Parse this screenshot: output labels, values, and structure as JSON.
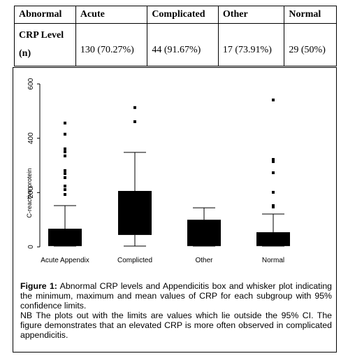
{
  "table": {
    "header": [
      "Abnormal",
      "Acute",
      "Complicated",
      "Other",
      "Normal"
    ],
    "rows": [
      [
        "CRP Level",
        "",
        "",
        "",
        ""
      ]
    ],
    "row_label": [
      "CRP Level",
      "(n)"
    ],
    "values": [
      "130 (70.27%)",
      "44 (91.67%)",
      "17 (73.91%)",
      "29 (50%)"
    ]
  },
  "chart_data": {
    "type": "box",
    "ylabel": "C-reactive protein",
    "categories": [
      "Acute Appendix",
      "Complicted",
      "Other",
      "Normal"
    ],
    "ylim": [
      0,
      600
    ],
    "yticks": [
      0,
      200,
      400,
      600
    ],
    "color": "#000000",
    "boxes": [
      {
        "min": 3,
        "q1": 3,
        "q3": 67,
        "max": 152,
        "outliers": [
          456,
          415,
          361,
          350,
          335,
          281,
          270,
          255,
          224,
          211,
          193
        ]
      },
      {
        "min": 3,
        "q1": 44,
        "q3": 206,
        "max": 348,
        "outliers": [
          513,
          461
        ]
      },
      {
        "min": 3,
        "q1": 3,
        "q3": 100,
        "max": 144,
        "outliers": []
      },
      {
        "min": 3,
        "q1": 3,
        "q3": 54,
        "max": 121,
        "outliers": [
          541,
          322,
          314,
          273,
          201,
          152,
          147
        ]
      }
    ]
  },
  "caption": {
    "label": "Figure 1:",
    "text": "Abnormal CRP levels and Appendicitis box and whisker plot indicating the minimum, maximum and mean values of CRP for each subgroup with 95% confidence limits.",
    "note": "NB The plots out with the limits are values which lie outside the 95% CI. The figure demonstrates that an elevated CRP is more often observed in complicated appendicitis."
  }
}
